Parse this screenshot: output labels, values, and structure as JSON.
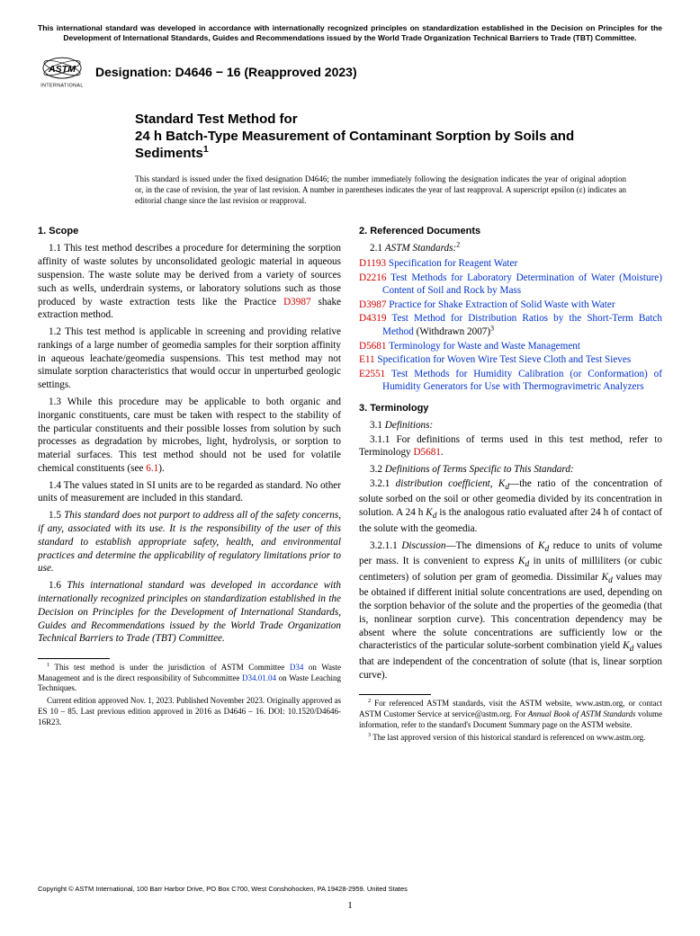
{
  "top_notice": "This international standard was developed in accordance with internationally recognized principles on standardization established in the Decision on Principles for the Development of International Standards, Guides and Recommendations issued by the World Trade Organization Technical Barriers to Trade (TBT) Committee.",
  "designation": "Designation: D4646 − 16 (Reapproved 2023)",
  "title_line1": "Standard Test Method for",
  "title_line2": "24 h Batch-Type Measurement of Contaminant Sorption by Soils and Sediments",
  "title_sup": "1",
  "issue_note": "This standard is issued under the fixed designation D4646; the number immediately following the designation indicates the year of original adoption or, in the case of revision, the year of last revision. A number in parentheses indicates the year of last reapproval. A superscript epsilon (ε) indicates an editorial change since the last revision or reapproval.",
  "s1_head": "1. Scope",
  "s1_1a": "1.1 This test method describes a procedure for determining the sorption affinity of waste solutes by unconsolidated geologic material in aqueous suspension. The waste solute may be derived from a variety of sources such as wells, underdrain systems, or laboratory solutions such as those produced by waste extraction tests like the Practice ",
  "s1_1_link": "D3987",
  "s1_1b": " shake extraction method.",
  "s1_2": "1.2 This test method is applicable in screening and providing relative rankings of a large number of geomedia samples for their sorption affinity in aqueous leachate/geomedia suspensions. This test method may not simulate sorption characteristics that would occur in unperturbed geologic settings.",
  "s1_3a": "1.3 While this procedure may be applicable to both organic and inorganic constituents, care must be taken with respect to the stability of the particular constituents and their possible losses from solution by such processes as degradation by microbes, light, hydrolysis, or sorption to material surfaces. This test method should not be used for volatile chemical constituents (see ",
  "s1_3_link": "6.1",
  "s1_3b": ").",
  "s1_4": "1.4 The values stated in SI units are to be regarded as standard. No other units of measurement are included in this standard.",
  "s1_5": "1.5 This standard does not purport to address all of the safety concerns, if any, associated with its use. It is the responsibility of the user of this standard to establish appropriate safety, health, and environmental practices and determine the applicability of regulatory limitations prior to use.",
  "s1_6": "1.6 This international standard was developed in accordance with internationally recognized principles on standardization established in the Decision on Principles for the Development of International Standards, Guides and Recommendations issued by the World Trade Organization Technical Barriers to Trade (TBT) Committee.",
  "s2_head": "2. Referenced Documents",
  "s2_1": "2.1 ",
  "s2_1_i": "ASTM Standards:",
  "s2_1_sup": "2",
  "refs": [
    {
      "code": "D1193",
      "title": "Specification for Reagent Water",
      "tail": ""
    },
    {
      "code": "D2216",
      "title": "Test Methods for Laboratory Determination of Water (Moisture) Content of Soil and Rock by Mass",
      "tail": ""
    },
    {
      "code": "D3987",
      "title": "Practice for Shake Extraction of Solid Waste with Water",
      "tail": ""
    },
    {
      "code": "D4319",
      "title": "Test Method for Distribution Ratios by the Short-Term Batch Method",
      "tail": " (Withdrawn 2007)",
      "tail_sup": "3"
    },
    {
      "code": "D5681",
      "title": "Terminology for Waste and Waste Management",
      "tail": ""
    },
    {
      "code": "E11",
      "title": "Specification for Woven Wire Test Sieve Cloth and Test Sieves",
      "tail": ""
    },
    {
      "code": "E2551",
      "title": "Test Methods for Humidity Calibration (or Conformation) of Humidity Generators for Use with Thermogravimetric Analyzers",
      "tail": ""
    }
  ],
  "s3_head": "3. Terminology",
  "s3_1": "3.1 ",
  "s3_1_i": "Definitions:",
  "s3_1_1a": "3.1.1 For definitions of terms used in this test method, refer to Terminology ",
  "s3_1_1_link": "D5681",
  "s3_1_1b": ".",
  "s3_2": "3.2 ",
  "s3_2_i": "Definitions of Terms Specific to This Standard:",
  "s3_2_1": "3.2.1 ",
  "s3_2_1_term": "distribution coefficient, K",
  "s3_2_1_sub": "d",
  "s3_2_1_body": "—the ratio of the concentration of solute sorbed on the soil or other geomedia divided by its concentration in solution. A 24 h ",
  "s3_2_1_body2": " is the analogous ratio evaluated after 24 h of contact of the solute with the geomedia.",
  "s3_2_1_1": "3.2.1.1 ",
  "s3_2_1_1_i": "Discussion",
  "s3_2_1_1_body": "—The dimensions of ",
  "s3_2_1_1_body2": " reduce to units of volume per mass. It is convenient to express ",
  "s3_2_1_1_body3": " in units of milliliters (or cubic centimeters) of solution per gram of geomedia. Dissimilar ",
  "s3_2_1_1_body4": " values may be obtained if different initial solute concentrations are used, depending on the sorption behavior of the solute and the properties of the geomedia (that is, nonlinear sorption curve). This concentration dependency may be absent where the solute concentrations are sufficiently low or the characteristics of the particular solute-sorbent combination yield ",
  "s3_2_1_1_body5": " values that are independent of the concentration of solute (that is, linear sorption curve).",
  "fn1a": " This test method is under the jurisdiction of ASTM Committee ",
  "fn1_link1": "D34",
  "fn1b": " on Waste Management and is the direct responsibility of Subcommittee ",
  "fn1_link2": "D34.01.04",
  "fn1c": " on Waste Leaching Techniques.",
  "fn1d": "Current edition approved Nov. 1, 2023. Published November 2023. Originally approved as ES 10 – 85. Last previous edition approved in 2016 as D4646 – 16. DOI: 10.1520/D4646-16R23.",
  "fn2a": " For referenced ASTM standards, visit the ASTM website, www.astm.org, or contact ASTM Customer Service at service@astm.org. For ",
  "fn2_i": "Annual Book of ASTM Standards",
  "fn2b": " volume information, refer to the standard's Document Summary page on the ASTM website.",
  "fn3": " The last approved version of this historical standard is referenced on www.astm.org.",
  "copyright": "Copyright © ASTM International, 100 Barr Harbor Drive, PO Box C700, West Conshohocken, PA 19428-2959. United States",
  "pagenum": "1"
}
